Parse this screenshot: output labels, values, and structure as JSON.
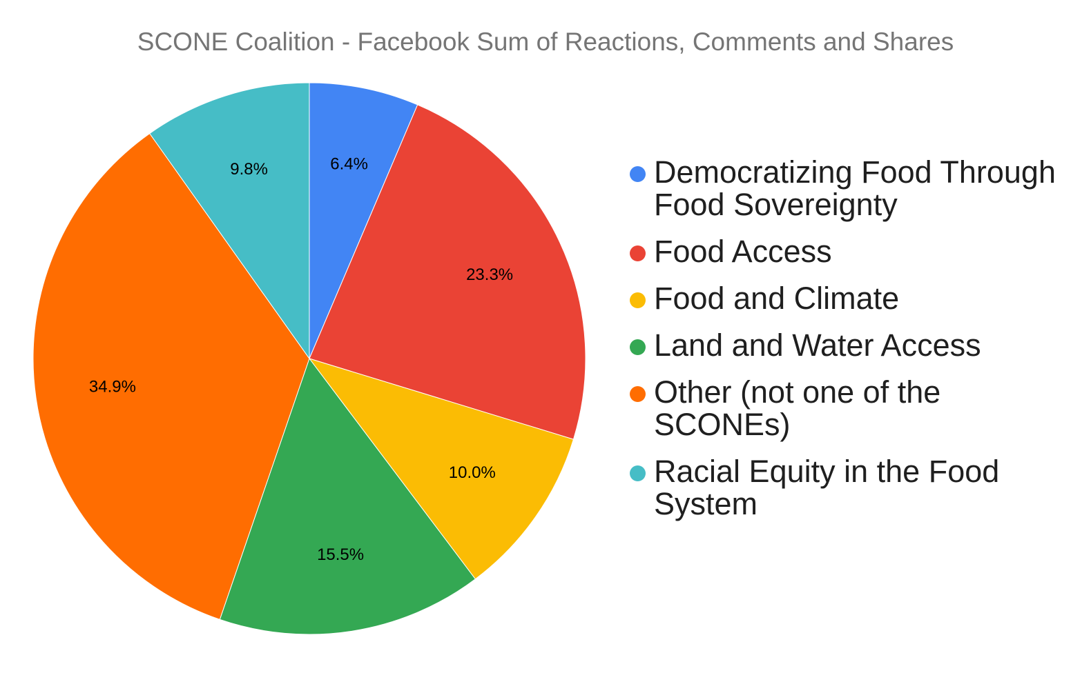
{
  "chart_data": {
    "type": "pie",
    "title": "SCONE Coalition - Facebook Sum of Reactions, Comments and Shares",
    "slices": [
      {
        "label": "Democratizing Food Through Food Sovereignty",
        "value": 6.4,
        "display": "6.4%",
        "color": "#4285F4"
      },
      {
        "label": "Food Access",
        "value": 23.3,
        "display": "23.3%",
        "color": "#EA4335"
      },
      {
        "label": "Food and Climate",
        "value": 10.0,
        "display": "10.0%",
        "color": "#FBBC04"
      },
      {
        "label": "Land and Water Access",
        "value": 15.5,
        "display": "15.5%",
        "color": "#34A853"
      },
      {
        "label": "Other (not one of the SCONEs)",
        "value": 34.9,
        "display": "34.9%",
        "color": "#FF6D01"
      },
      {
        "label": "Racial Equity in the Food System",
        "value": 9.8,
        "display": "9.8%",
        "color": "#46BDC6"
      }
    ],
    "legend_position": "right",
    "start_angle": "12 o'clock",
    "direction": "clockwise"
  }
}
